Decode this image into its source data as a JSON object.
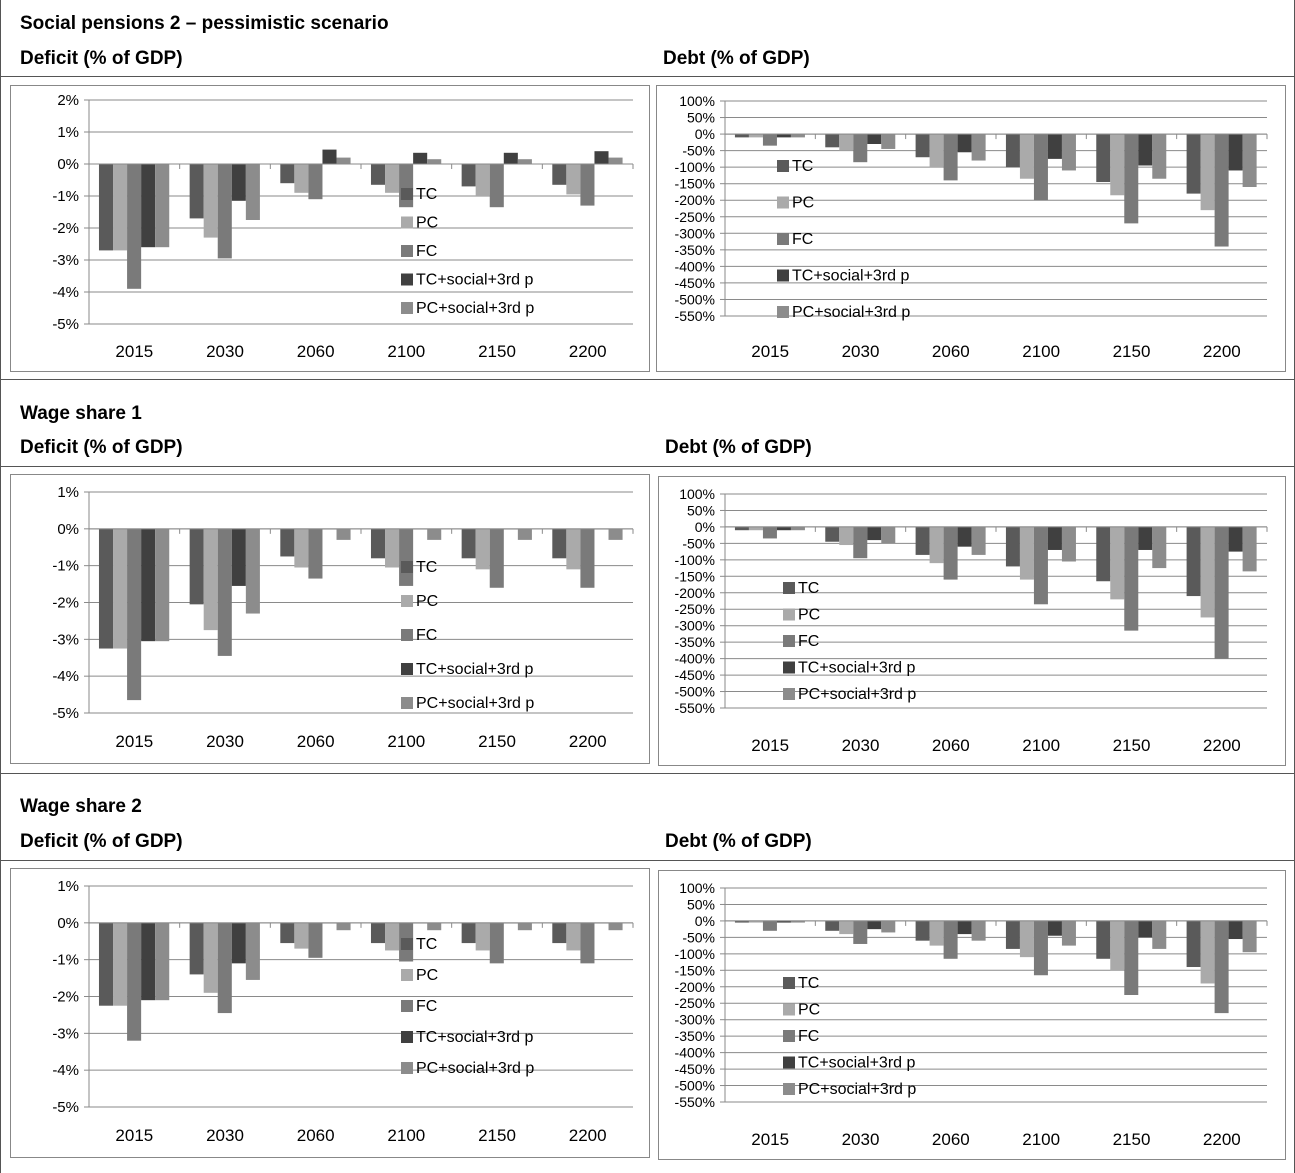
{
  "sections": [
    {
      "title": "Social pensions 2 – pessimistic scenario",
      "left_label": "Deficit (% of GDP)",
      "right_label": "Debt (% of GDP)"
    },
    {
      "title": "Wage share 1",
      "left_label": "Deficit (% of GDP)",
      "right_label": "Debt (% of GDP)"
    },
    {
      "title": "Wage share 2",
      "left_label": "Deficit (% of GDP)",
      "right_label": "Debt (% of GDP)"
    }
  ],
  "colors": {
    "TC": "#5a5a5a",
    "PC": "#aaaaaa",
    "FC": "#7a7a7a",
    "TC+social+3rd p": "#404040",
    "PC+social+3rd p": "#8c8c8c"
  },
  "chart_data": [
    {
      "type": "bar",
      "title": "Deficit (% of GDP)",
      "categories": [
        "2015",
        "2030",
        "2060",
        "2100",
        "2150",
        "2200"
      ],
      "ylim": [
        -5,
        2
      ],
      "yticks": [
        "2%",
        "1%",
        "0%",
        "-1%",
        "-2%",
        "-3%",
        "-4%",
        "-5%"
      ],
      "series": [
        {
          "name": "TC",
          "values": [
            -2.7,
            -1.7,
            -0.6,
            -0.65,
            -0.7,
            -0.65
          ]
        },
        {
          "name": "PC",
          "values": [
            -2.7,
            -2.3,
            -0.9,
            -0.9,
            -1.0,
            -0.95
          ]
        },
        {
          "name": "FC",
          "values": [
            -3.9,
            -2.95,
            -1.1,
            -1.35,
            -1.35,
            -1.3
          ]
        },
        {
          "name": "TC+social+3rd p",
          "values": [
            -2.6,
            -1.15,
            0.45,
            0.35,
            0.35,
            0.4
          ]
        },
        {
          "name": "PC+social+3rd p",
          "values": [
            -2.6,
            -1.75,
            0.2,
            0.15,
            0.15,
            0.2
          ]
        }
      ]
    },
    {
      "type": "bar",
      "title": "Debt (% of GDP)",
      "categories": [
        "2015",
        "2030",
        "2060",
        "2100",
        "2150",
        "2200"
      ],
      "ylim": [
        -550,
        100
      ],
      "yticks": [
        "100%",
        "50%",
        "0%",
        "-50%",
        "-100%",
        "-150%",
        "-200%",
        "-250%",
        "-300%",
        "-350%",
        "-400%",
        "-450%",
        "-500%",
        "-550%"
      ],
      "series": [
        {
          "name": "TC",
          "values": [
            -10,
            -40,
            -70,
            -100,
            -145,
            -180
          ]
        },
        {
          "name": "PC",
          "values": [
            -10,
            -50,
            -100,
            -135,
            -185,
            -230
          ]
        },
        {
          "name": "FC",
          "values": [
            -35,
            -85,
            -140,
            -200,
            -270,
            -340
          ]
        },
        {
          "name": "TC+social+3rd p",
          "values": [
            -10,
            -30,
            -55,
            -75,
            -95,
            -110
          ]
        },
        {
          "name": "PC+social+3rd p",
          "values": [
            -10,
            -45,
            -80,
            -110,
            -135,
            -160
          ]
        }
      ]
    },
    {
      "type": "bar",
      "title": "Deficit (% of GDP)",
      "categories": [
        "2015",
        "2030",
        "2060",
        "2100",
        "2150",
        "2200"
      ],
      "ylim": [
        -5,
        1
      ],
      "yticks": [
        "1%",
        "0%",
        "-1%",
        "-2%",
        "-3%",
        "-4%",
        "-5%"
      ],
      "series": [
        {
          "name": "TC",
          "values": [
            -3.25,
            -2.05,
            -0.75,
            -0.8,
            -0.8,
            -0.8
          ]
        },
        {
          "name": "PC",
          "values": [
            -3.25,
            -2.75,
            -1.05,
            -1.05,
            -1.1,
            -1.1
          ]
        },
        {
          "name": "FC",
          "values": [
            -4.65,
            -3.45,
            -1.35,
            -1.55,
            -1.6,
            -1.6
          ]
        },
        {
          "name": "TC+social+3rd p",
          "values": [
            -3.05,
            -1.55,
            0,
            0,
            0,
            0
          ]
        },
        {
          "name": "PC+social+3rd p",
          "values": [
            -3.05,
            -2.3,
            -0.3,
            -0.3,
            -0.3,
            -0.3
          ]
        }
      ]
    },
    {
      "type": "bar",
      "title": "Debt (% of GDP)",
      "categories": [
        "2015",
        "2030",
        "2060",
        "2100",
        "2150",
        "2200"
      ],
      "ylim": [
        -550,
        100
      ],
      "yticks": [
        "100%",
        "50%",
        "0%",
        "-50%",
        "-100%",
        "-150%",
        "-200%",
        "-250%",
        "-300%",
        "-350%",
        "-400%",
        "-450%",
        "-500%",
        "-550%"
      ],
      "series": [
        {
          "name": "TC",
          "values": [
            -10,
            -45,
            -85,
            -120,
            -165,
            -210
          ]
        },
        {
          "name": "PC",
          "values": [
            -10,
            -55,
            -110,
            -160,
            -220,
            -275
          ]
        },
        {
          "name": "FC",
          "values": [
            -35,
            -95,
            -160,
            -235,
            -315,
            -400
          ]
        },
        {
          "name": "TC+social+3rd p",
          "values": [
            -10,
            -40,
            -60,
            -70,
            -70,
            -75
          ]
        },
        {
          "name": "PC+social+3rd p",
          "values": [
            -10,
            -50,
            -85,
            -105,
            -125,
            -135
          ]
        }
      ]
    },
    {
      "type": "bar",
      "title": "Deficit (% of GDP)",
      "categories": [
        "2015",
        "2030",
        "2060",
        "2100",
        "2150",
        "2200"
      ],
      "ylim": [
        -5,
        1
      ],
      "yticks": [
        "1%",
        "0%",
        "-1%",
        "-2%",
        "-3%",
        "-4%",
        "-5%"
      ],
      "series": [
        {
          "name": "TC",
          "values": [
            -2.25,
            -1.4,
            -0.55,
            -0.55,
            -0.55,
            -0.55
          ]
        },
        {
          "name": "PC",
          "values": [
            -2.25,
            -1.9,
            -0.7,
            -0.75,
            -0.75,
            -0.75
          ]
        },
        {
          "name": "FC",
          "values": [
            -3.2,
            -2.45,
            -0.95,
            -1.05,
            -1.1,
            -1.1
          ]
        },
        {
          "name": "TC+social+3rd p",
          "values": [
            -2.1,
            -1.1,
            0,
            0,
            0,
            0
          ]
        },
        {
          "name": "PC+social+3rd p",
          "values": [
            -2.1,
            -1.55,
            -0.2,
            -0.2,
            -0.2,
            -0.2
          ]
        }
      ]
    },
    {
      "type": "bar",
      "title": "Debt (% of GDP)",
      "categories": [
        "2015",
        "2030",
        "2060",
        "2100",
        "2150",
        "2200"
      ],
      "ylim": [
        -550,
        100
      ],
      "yticks": [
        "100%",
        "50%",
        "0%",
        "-50%",
        "-100%",
        "-150%",
        "-200%",
        "-250%",
        "-300%",
        "-350%",
        "-400%",
        "-450%",
        "-500%",
        "-550%"
      ],
      "series": [
        {
          "name": "TC",
          "values": [
            -5,
            -30,
            -60,
            -85,
            -115,
            -140
          ]
        },
        {
          "name": "PC",
          "values": [
            -5,
            -40,
            -75,
            -110,
            -150,
            -190
          ]
        },
        {
          "name": "FC",
          "values": [
            -30,
            -70,
            -115,
            -165,
            -225,
            -280
          ]
        },
        {
          "name": "TC+social+3rd p",
          "values": [
            -5,
            -25,
            -40,
            -45,
            -50,
            -55
          ]
        },
        {
          "name": "PC+social+3rd p",
          "values": [
            -5,
            -35,
            -60,
            -75,
            -85,
            -95
          ]
        }
      ]
    }
  ]
}
